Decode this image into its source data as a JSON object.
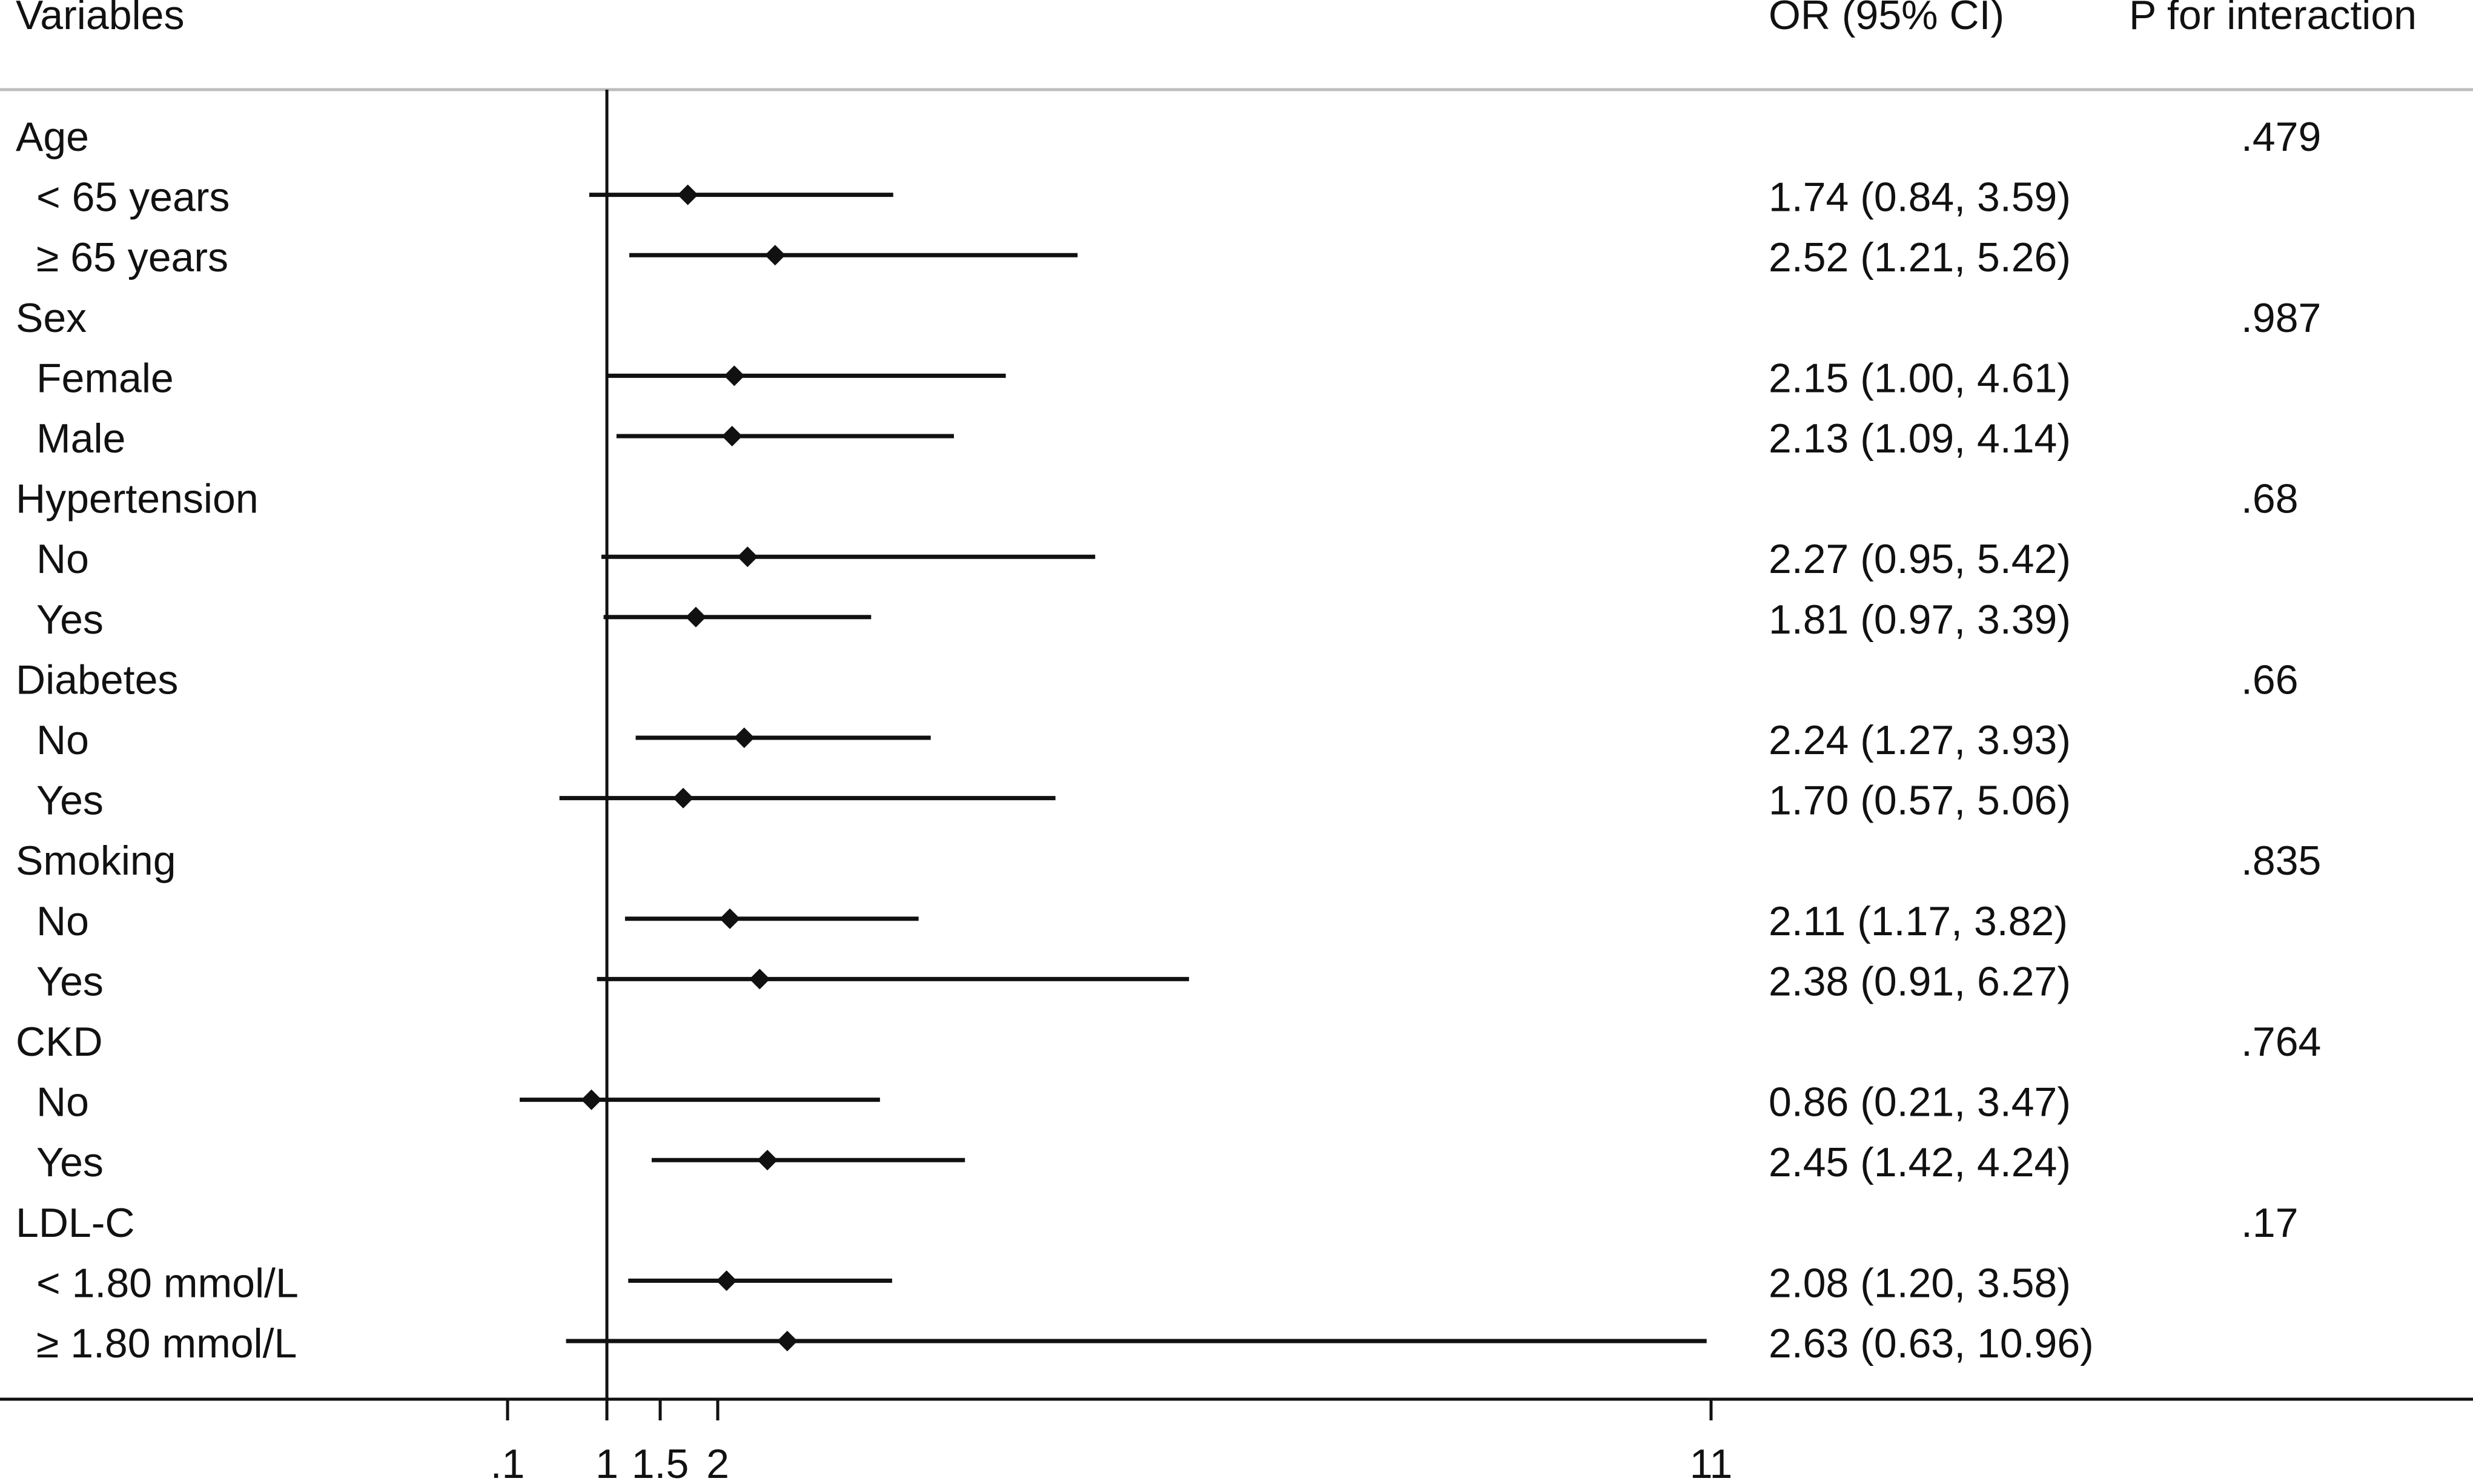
{
  "header": {
    "variables": "Variables",
    "or_ci": "OR (95% CI)",
    "p_interaction": "P for interaction"
  },
  "chart_data": {
    "type": "forest",
    "x_axis": {
      "ticks": [
        0.1,
        1,
        1.5,
        2,
        11
      ],
      "tick_labels": [
        ".1",
        "1",
        "1.5",
        "2",
        "11"
      ],
      "reference_line": 1
    },
    "rows": [
      {
        "label": "Age",
        "kind": "group",
        "p": ".479"
      },
      {
        "label": "< 65 years",
        "kind": "sub",
        "or": 1.74,
        "lo": 0.84,
        "hi": 3.59,
        "text": "1.74 (0.84, 3.59)"
      },
      {
        "label": "≥ 65 years",
        "kind": "sub",
        "or": 2.52,
        "lo": 1.21,
        "hi": 5.26,
        "text": "2.52 (1.21, 5.26)"
      },
      {
        "label": "Sex",
        "kind": "group",
        "p": ".987"
      },
      {
        "label": "Female",
        "kind": "sub",
        "or": 2.15,
        "lo": 1.0,
        "hi": 4.61,
        "text": "2.15 (1.00, 4.61)"
      },
      {
        "label": "Male",
        "kind": "sub",
        "or": 2.13,
        "lo": 1.09,
        "hi": 4.14,
        "text": "2.13 (1.09, 4.14)"
      },
      {
        "label": "Hypertension",
        "kind": "group",
        "p": ".68"
      },
      {
        "label": "No",
        "kind": "sub",
        "or": 2.27,
        "lo": 0.95,
        "hi": 5.42,
        "text": "2.27 (0.95, 5.42)"
      },
      {
        "label": "Yes",
        "kind": "sub",
        "or": 1.81,
        "lo": 0.97,
        "hi": 3.39,
        "text": "1.81 (0.97, 3.39)"
      },
      {
        "label": "Diabetes",
        "kind": "group",
        "p": ".66"
      },
      {
        "label": "No",
        "kind": "sub",
        "or": 2.24,
        "lo": 1.27,
        "hi": 3.93,
        "text": "2.24 (1.27, 3.93)"
      },
      {
        "label": "Yes",
        "kind": "sub",
        "or": 1.7,
        "lo": 0.57,
        "hi": 5.06,
        "text": "1.70 (0.57, 5.06)"
      },
      {
        "label": "Smoking",
        "kind": "group",
        "p": ".835"
      },
      {
        "label": "No",
        "kind": "sub",
        "or": 2.11,
        "lo": 1.17,
        "hi": 3.82,
        "text": "2.11 (1.17, 3.82)"
      },
      {
        "label": "Yes",
        "kind": "sub",
        "or": 2.38,
        "lo": 0.91,
        "hi": 6.27,
        "text": "2.38 (0.91, 6.27)"
      },
      {
        "label": "CKD",
        "kind": "group",
        "p": ".764"
      },
      {
        "label": "No",
        "kind": "sub",
        "or": 0.86,
        "lo": 0.21,
        "hi": 3.47,
        "text": "0.86 (0.21, 3.47)"
      },
      {
        "label": "Yes",
        "kind": "sub",
        "or": 2.45,
        "lo": 1.42,
        "hi": 4.24,
        "text": "2.45 (1.42, 4.24)"
      },
      {
        "label": "LDL-C",
        "kind": "group",
        "p": ".17"
      },
      {
        "label": "< 1.80 mmol/L",
        "kind": "sub",
        "or": 2.08,
        "lo": 1.2,
        "hi": 3.58,
        "text": "2.08 (1.20, 3.58)"
      },
      {
        "label": "≥ 1.80 mmol/L",
        "kind": "sub",
        "or": 2.63,
        "lo": 0.63,
        "hi": 10.96,
        "text": "2.63 (0.63, 10.96)"
      }
    ]
  }
}
